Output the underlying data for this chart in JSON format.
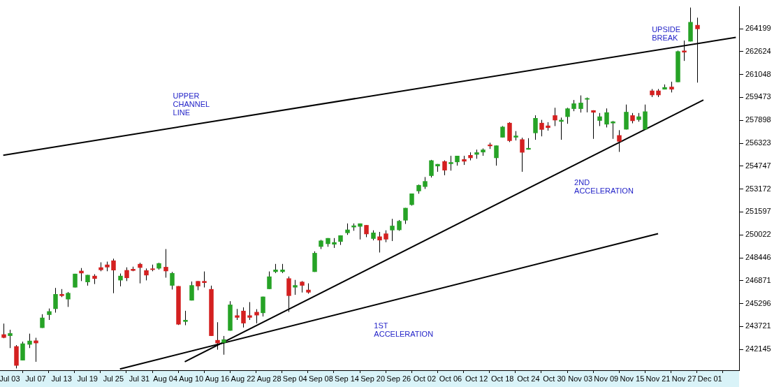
{
  "chart_data": {
    "type": "candlestick",
    "categories": [
      null,
      "Jul 03",
      null,
      null,
      null,
      "Jul 07",
      null,
      null,
      null,
      "Jul 13",
      null,
      null,
      null,
      "Jul 19",
      null,
      null,
      null,
      "Jul 25",
      null,
      null,
      null,
      "Jul 31",
      null,
      null,
      null,
      "Aug 04",
      null,
      null,
      null,
      "Aug 10",
      null,
      null,
      null,
      "Aug 16",
      null,
      null,
      null,
      "Aug 22",
      null,
      null,
      null,
      "Aug 28",
      null,
      null,
      null,
      "Sep 04",
      null,
      null,
      null,
      "Sep 08",
      null,
      null,
      null,
      "Sep 14",
      null,
      null,
      null,
      "Sep 20",
      null,
      null,
      null,
      "Sep 26",
      null,
      null,
      null,
      "Oct 02",
      null,
      null,
      null,
      "Oct 06",
      null,
      null,
      null,
      "Oct 12",
      null,
      null,
      null,
      "Oct 18",
      null,
      null,
      null,
      "Oct 24",
      null,
      null,
      null,
      "Oct 30",
      null,
      null,
      null,
      "Nov 03",
      null,
      null,
      null,
      "Nov 09",
      null,
      null,
      null,
      "Nov 15",
      null,
      null,
      null,
      "Nov 21",
      null,
      null,
      null,
      "Nov 27",
      null,
      null,
      null,
      "Dec 01",
      null,
      null,
      null,
      null
    ],
    "ohlc": [
      [
        243182,
        243921,
        242914,
        242946
      ],
      [
        243072,
        243496,
        242238,
        243260
      ],
      [
        242364,
        242443,
        240840,
        241028
      ],
      [
        241390,
        242678,
        241390,
        242553
      ],
      [
        242474,
        243229,
        242238,
        242742
      ],
      [
        242757,
        242946,
        241295,
        242569
      ],
      [
        243622,
        244565,
        243622,
        244329
      ],
      [
        244518,
        244958,
        244172,
        244769
      ],
      [
        244927,
        246373,
        244675,
        245948
      ],
      [
        245948,
        246294,
        245744,
        245823
      ],
      [
        245587,
        246090,
        245068,
        246027
      ],
      [
        246404,
        247348,
        246404,
        247348
      ],
      [
        247552,
        247740,
        246844,
        247379
      ],
      [
        246766,
        247269,
        246530,
        247269
      ],
      [
        247206,
        247316,
        246640,
        247002
      ],
      [
        247788,
        248133,
        247520,
        247599
      ],
      [
        247976,
        248181,
        247520,
        247788
      ],
      [
        248259,
        248385,
        246011,
        247583
      ],
      [
        246892,
        247363,
        246483,
        247206
      ],
      [
        247599,
        247788,
        246844,
        247049
      ],
      [
        247678,
        247835,
        247520,
        247552
      ],
      [
        248023,
        248102,
        246687,
        247756
      ],
      [
        247583,
        247709,
        246892,
        247238
      ],
      [
        247709,
        247976,
        247520,
        247631
      ],
      [
        247709,
        248102,
        247631,
        248071
      ],
      [
        247819,
        249045,
        247080,
        247520
      ],
      [
        246530,
        247473,
        246263,
        247395
      ],
      [
        246499,
        246499,
        243826,
        243858
      ],
      [
        244046,
        244801,
        243810,
        244172
      ],
      [
        245508,
        246813,
        245508,
        246561
      ],
      [
        246844,
        246844,
        246216,
        246483
      ],
      [
        246844,
        247505,
        246404,
        246719
      ],
      [
        246294,
        246530,
        243071,
        243071
      ],
      [
        242789,
        244015,
        242128,
        242569
      ],
      [
        242600,
        243071,
        241783,
        242836
      ],
      [
        243433,
        245461,
        243433,
        245225
      ],
      [
        244486,
        244927,
        244172,
        244329
      ],
      [
        244801,
        245037,
        243653,
        243936
      ],
      [
        244486,
        245398,
        244172,
        244329
      ],
      [
        244722,
        244911,
        243936,
        244486
      ],
      [
        244644,
        245775,
        244408,
        245775
      ],
      [
        246294,
        247505,
        246294,
        247159
      ],
      [
        247473,
        248023,
        247395,
        247631
      ],
      [
        247473,
        248023,
        247395,
        247631
      ],
      [
        247033,
        247159,
        244722,
        245823
      ],
      [
        246404,
        246923,
        245901,
        246561
      ],
      [
        246797,
        246844,
        246058,
        246530
      ],
      [
        246247,
        246687,
        245980,
        246058
      ],
      [
        247473,
        248888,
        247473,
        248778
      ],
      [
        249202,
        249674,
        249045,
        249627
      ],
      [
        249391,
        249800,
        249202,
        249800
      ],
      [
        249360,
        249800,
        249124,
        249517
      ],
      [
        249548,
        249988,
        249328,
        249988
      ],
      [
        250145,
        250806,
        250020,
        250382
      ],
      [
        250539,
        250806,
        250303,
        250664
      ],
      [
        250586,
        250806,
        249706,
        250806
      ],
      [
        250696,
        250696,
        249863,
        250067
      ],
      [
        249752,
        250334,
        249643,
        250177
      ],
      [
        249910,
        250224,
        248809,
        249643
      ],
      [
        250114,
        250334,
        249517,
        249706
      ],
      [
        250334,
        251120,
        249596,
        250649
      ],
      [
        250350,
        251042,
        250303,
        250979
      ],
      [
        251010,
        251875,
        250774,
        251875
      ],
      [
        252079,
        252865,
        252032,
        252865
      ],
      [
        253022,
        253478,
        252850,
        253447
      ],
      [
        253321,
        253997,
        253180,
        253714
      ],
      [
        254075,
        255176,
        253965,
        255144
      ],
      [
        254736,
        254893,
        254358,
        254893
      ],
      [
        255081,
        255144,
        254122,
        254453
      ],
      [
        254893,
        255459,
        254437,
        255018
      ],
      [
        255018,
        255459,
        254782,
        255459
      ],
      [
        255223,
        255459,
        254830,
        255066
      ],
      [
        255506,
        255695,
        255144,
        255301
      ],
      [
        255537,
        255883,
        255254,
        255695
      ],
      [
        255695,
        255962,
        255459,
        255883
      ],
      [
        256229,
        256355,
        255930,
        256119
      ],
      [
        255301,
        256166,
        254782,
        256166
      ],
      [
        256716,
        257502,
        256716,
        257455
      ],
      [
        257722,
        257769,
        256402,
        256480
      ],
      [
        256716,
        257156,
        256512,
        256842
      ],
      [
        256590,
        256701,
        254358,
        255679
      ],
      [
        255883,
        256669,
        255883,
        255993
      ],
      [
        257015,
        258241,
        256559,
        258053
      ],
      [
        257722,
        257927,
        256795,
        257251
      ],
      [
        257534,
        257769,
        257188,
        257376
      ],
      [
        258241,
        258760,
        257502,
        257895
      ],
      [
        257801,
        258084,
        256559,
        257927
      ],
      [
        258131,
        258760,
        257659,
        258713
      ],
      [
        258681,
        259294,
        258524,
        259058
      ],
      [
        258681,
        259609,
        258430,
        259106
      ],
      [
        259341,
        259467,
        258445,
        259420
      ],
      [
        258587,
        258587,
        256622,
        258430
      ],
      [
        257866,
        258398,
        257502,
        258162
      ],
      [
        257612,
        258713,
        257408,
        258445
      ],
      [
        257691,
        257848,
        256622,
        257816
      ],
      [
        256873,
        257219,
        255726,
        256433
      ],
      [
        257266,
        258980,
        257266,
        258477
      ],
      [
        258241,
        258398,
        257691,
        257848
      ],
      [
        257927,
        258398,
        257801,
        258162
      ],
      [
        257266,
        258980,
        257266,
        258508
      ],
      [
        259939,
        260049,
        259499,
        259624
      ],
      [
        259939,
        260049,
        259499,
        259624
      ],
      [
        260017,
        260363,
        260017,
        260175
      ],
      [
        260206,
        260552,
        259813,
        260017
      ],
      [
        260520,
        262690,
        260520,
        262643
      ],
      [
        262690,
        263381,
        261983,
        262564
      ],
      [
        263318,
        265650,
        263318,
        264655
      ],
      [
        264450,
        264953,
        260489,
        264167
      ],
      null,
      null,
      null,
      null,
      null,
      null
    ],
    "series": [
      {
        "type": "line",
        "color": "#000000",
        "values": [
          255500,
          null,
          null,
          null,
          null,
          null,
          null,
          null,
          null,
          null,
          null,
          null,
          null,
          null,
          null,
          null,
          null,
          null,
          null,
          null,
          null,
          null,
          null,
          null,
          null,
          null,
          null,
          null,
          null,
          null,
          null,
          null,
          null,
          null,
          null,
          null,
          null,
          null,
          null,
          null,
          null,
          null,
          null,
          null,
          null,
          null,
          null,
          null,
          null,
          null,
          null,
          null,
          null,
          null,
          null,
          null,
          null,
          null,
          null,
          null,
          null,
          null,
          null,
          null,
          null,
          null,
          null,
          null,
          null,
          null,
          null,
          null,
          null,
          null,
          null,
          null,
          null,
          null,
          null,
          null,
          null,
          null,
          null,
          null,
          null,
          null,
          null,
          null,
          null,
          null,
          null,
          null,
          null,
          null,
          null,
          null,
          null,
          null,
          null,
          null,
          null,
          null,
          null,
          null,
          null,
          null,
          null,
          null,
          null,
          null,
          null,
          null,
          null,
          263600
        ]
      },
      {
        "type": "line",
        "color": "#000000",
        "values": [
          null,
          null,
          null,
          null,
          null,
          null,
          null,
          null,
          null,
          null,
          null,
          null,
          null,
          null,
          null,
          null,
          null,
          null,
          null,
          null,
          null,
          null,
          null,
          null,
          null,
          null,
          null,
          null,
          241300,
          null,
          null,
          null,
          null,
          null,
          null,
          null,
          null,
          null,
          null,
          null,
          null,
          null,
          null,
          null,
          null,
          null,
          null,
          null,
          null,
          null,
          null,
          null,
          null,
          null,
          null,
          null,
          null,
          null,
          null,
          null,
          null,
          null,
          null,
          null,
          null,
          null,
          null,
          null,
          null,
          null,
          null,
          null,
          null,
          null,
          null,
          null,
          null,
          null,
          null,
          null,
          null,
          null,
          null,
          null,
          null,
          null,
          null,
          null,
          null,
          null,
          null,
          null,
          null,
          null,
          null,
          null,
          null,
          null,
          null,
          null,
          null,
          null,
          null,
          null,
          null,
          null,
          null,
          null,
          259300,
          null,
          null,
          null,
          null,
          null
        ]
      },
      {
        "type": "line",
        "color": "#000000",
        "values": [
          null,
          null,
          null,
          null,
          null,
          null,
          null,
          null,
          null,
          null,
          null,
          null,
          null,
          null,
          null,
          null,
          null,
          null,
          240800,
          null,
          null,
          null,
          null,
          null,
          null,
          null,
          null,
          null,
          null,
          null,
          null,
          null,
          null,
          null,
          null,
          null,
          null,
          null,
          null,
          null,
          null,
          null,
          null,
          null,
          null,
          null,
          null,
          null,
          null,
          null,
          null,
          null,
          null,
          null,
          null,
          null,
          null,
          null,
          null,
          null,
          null,
          null,
          null,
          null,
          null,
          null,
          null,
          null,
          null,
          null,
          null,
          null,
          null,
          null,
          null,
          null,
          null,
          null,
          null,
          null,
          null,
          null,
          null,
          null,
          null,
          null,
          null,
          null,
          null,
          null,
          null,
          null,
          null,
          null,
          null,
          null,
          null,
          null,
          null,
          null,
          null,
          250100,
          null,
          null,
          null,
          null,
          null,
          null,
          null,
          null,
          null,
          null,
          null,
          null
        ]
      }
    ],
    "ylim": [
      240714,
      265708
    ],
    "yticks": [
      242145,
      243721,
      245296,
      246871,
      248446,
      250022,
      251597,
      253172,
      254747,
      256323,
      257898,
      259473,
      261048,
      262624,
      264199
    ],
    "annotations": [
      "UPPER\nCHANNEL\nLINE",
      "2ND\nACCELERATION",
      "1ST\nACCELERATION",
      "UPSIDE\nBREAK"
    ]
  }
}
